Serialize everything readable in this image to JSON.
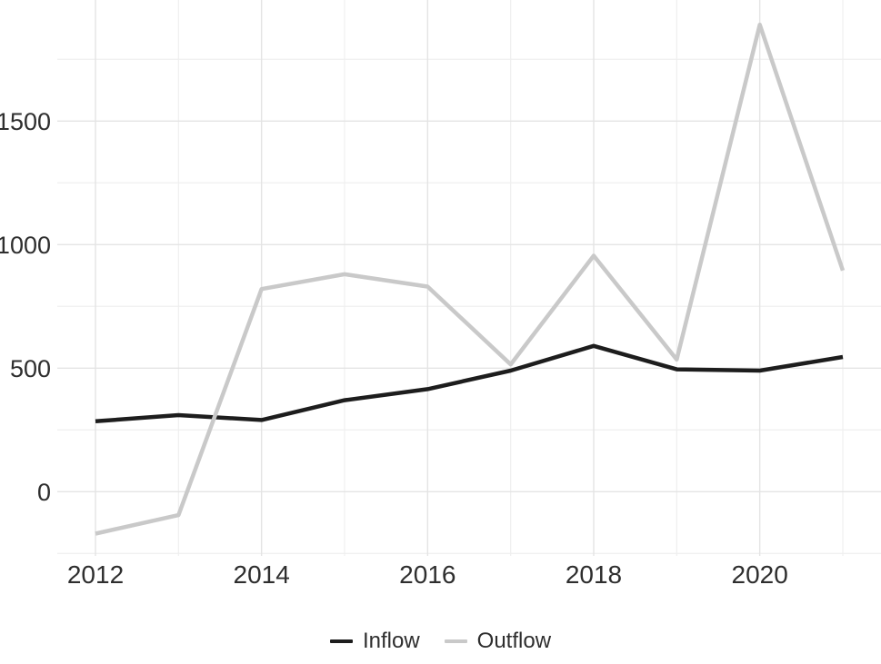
{
  "chart_data": {
    "type": "line",
    "title": "",
    "xlabel": "",
    "ylabel": "",
    "x": [
      2012,
      2013,
      2014,
      2015,
      2016,
      2017,
      2018,
      2019,
      2020,
      2021
    ],
    "series": [
      {
        "name": "Inflow",
        "color": "#1d1d1d",
        "values": [
          285,
          310,
          290,
          370,
          415,
          490,
          590,
          495,
          490,
          545
        ]
      },
      {
        "name": "Outflow",
        "color": "#c9c9c9",
        "values": [
          -170,
          -95,
          820,
          880,
          830,
          515,
          955,
          535,
          1890,
          895
        ]
      }
    ],
    "xlim": [
      2011.54,
      2021.46
    ],
    "ylim": [
      -260,
      1990
    ],
    "x_ticks_major": [
      2012,
      2014,
      2016,
      2018,
      2020
    ],
    "x_ticks_minor": [
      2013,
      2015,
      2017,
      2019,
      2021
    ],
    "y_ticks_major": [
      0,
      500,
      1000,
      1500
    ],
    "y_ticks_minor": [
      -250,
      250,
      750,
      1250,
      1750
    ],
    "x_tick_labels": [
      "2012",
      "2014",
      "2016",
      "2018",
      "2020"
    ],
    "y_tick_labels": [
      "0",
      "500",
      "1000",
      "1500"
    ],
    "grid": true,
    "legend_position": "bottom",
    "colors": {
      "background": "#ffffff",
      "grid_major": "#e4e4e4",
      "grid_minor": "#efefef",
      "axis_text": "#2e2e2e"
    }
  }
}
